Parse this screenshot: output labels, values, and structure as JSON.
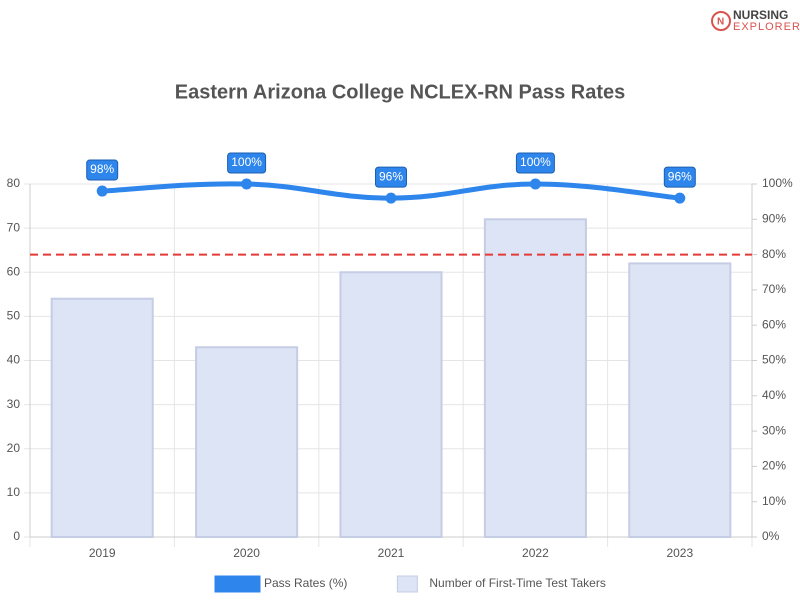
{
  "logo": [
    "NURSING",
    "EXPLORER"
  ],
  "chart_data": {
    "type": "bar",
    "title": "Eastern Arizona College NCLEX-RN Pass Rates",
    "categories": [
      "2019",
      "2020",
      "2021",
      "2022",
      "2023"
    ],
    "series": [
      {
        "name": "Pass Rates (%)",
        "type": "line",
        "axis": "y2",
        "color": "#2e86ec",
        "values": [
          98,
          100,
          96,
          100,
          96
        ],
        "value_labels": [
          "98%",
          "100%",
          "96%",
          "100%",
          "96%"
        ]
      },
      {
        "name": "Number of First-Time Test Takers",
        "type": "bar",
        "color": "#dde4f5",
        "values": [
          54,
          43,
          60,
          72,
          62
        ]
      }
    ],
    "ylim": [
      0,
      80
    ],
    "yticks": [
      0,
      10,
      20,
      30,
      40,
      50,
      60,
      70,
      80
    ],
    "y2lim": [
      0,
      100
    ],
    "y2ticks": [
      {
        "value": 0,
        "label": "0%"
      },
      {
        "value": 10,
        "label": "10%"
      },
      {
        "value": 20,
        "label": "20%"
      },
      {
        "value": 30,
        "label": "30%"
      },
      {
        "value": 40,
        "label": "40%"
      },
      {
        "value": 50,
        "label": "50%"
      },
      {
        "value": 60,
        "label": "60%"
      },
      {
        "value": 70,
        "label": "70%"
      },
      {
        "value": 80,
        "label": "80%"
      },
      {
        "value": 90,
        "label": "90%"
      },
      {
        "value": 100,
        "label": "100%"
      }
    ],
    "reference_line": {
      "value": 80,
      "axis": "y2",
      "color": "#e53935"
    },
    "grid": true,
    "legend": "bottom"
  }
}
